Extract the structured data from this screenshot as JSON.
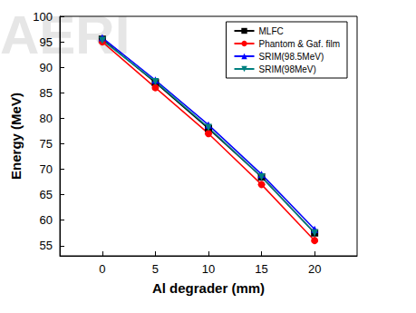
{
  "chart_data": {
    "type": "line",
    "x_label": "Al degrader (mm)",
    "y_label": "Energy (MeV)",
    "annotations": [
      "AERI"
    ],
    "x": [
      0,
      5,
      10,
      15,
      20
    ],
    "series": [
      {
        "name": "MLFC",
        "color": "#000000",
        "marker": "square",
        "values": [
          95.5,
          87.0,
          78.0,
          68.5,
          57.5
        ]
      },
      {
        "name": "Phantom & Gaf. film",
        "color": "#ff0000",
        "marker": "circle",
        "values": [
          95.0,
          86.0,
          77.0,
          67.0,
          56.0
        ]
      },
      {
        "name": "SRIM(98.5MeV)",
        "color": "#0000ff",
        "marker": "triangle",
        "values": [
          95.8,
          87.5,
          78.7,
          69.0,
          58.2
        ]
      },
      {
        "name": "SRIM(98MeV)",
        "color": "#008080",
        "marker": "triangle_down",
        "values": [
          95.3,
          87.2,
          78.2,
          68.5,
          57.5
        ]
      }
    ],
    "xlim": [
      -4,
      24
    ],
    "xticks": [
      0,
      5,
      10,
      15,
      20
    ],
    "ylim": [
      53,
      100
    ],
    "yticks": [
      55,
      60,
      65,
      70,
      75,
      80,
      85,
      90,
      95,
      100
    ],
    "legend": "upper right",
    "grid": false
  }
}
